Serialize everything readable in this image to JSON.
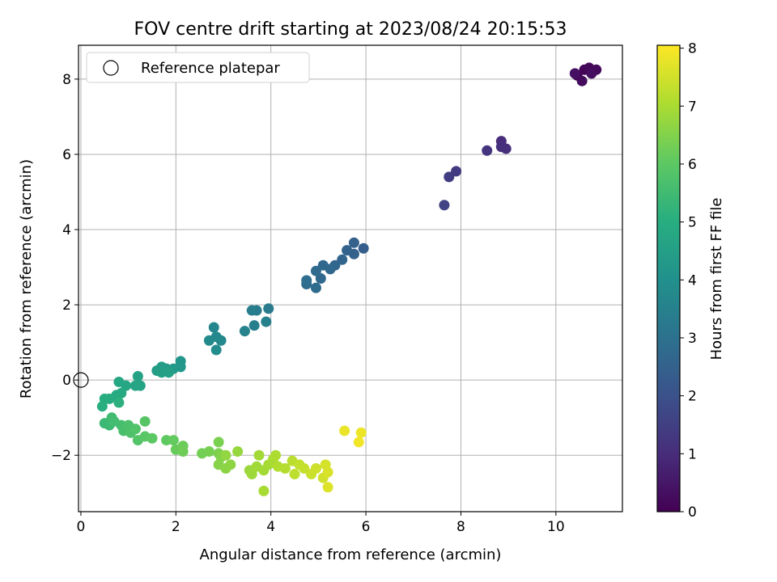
{
  "chart_data": {
    "type": "scatter",
    "title": "FOV centre drift starting at 2023/08/24 20:15:53",
    "xlabel": "Angular distance from reference (arcmin)",
    "ylabel": "Rotation from reference (arcmin)",
    "xlim": [
      -0.05,
      11.4
    ],
    "ylim": [
      -3.5,
      8.9
    ],
    "xticks": [
      0,
      2,
      4,
      6,
      8,
      10
    ],
    "yticks": [
      -2,
      0,
      2,
      4,
      6,
      8
    ],
    "xtick_labels": [
      "0",
      "2",
      "4",
      "6",
      "8",
      "10"
    ],
    "ytick_labels": [
      "−2",
      "0",
      "2",
      "4",
      "6",
      "8"
    ],
    "grid": true,
    "legend": {
      "position": "top-left",
      "entries": [
        "Reference platepar"
      ]
    },
    "reference_point": {
      "x": 0,
      "y": 0
    },
    "colorbar": {
      "label": "Hours from first FF file",
      "range": [
        0,
        8.05
      ],
      "ticks": [
        0,
        1,
        2,
        3,
        4,
        5,
        6,
        7,
        8
      ],
      "tick_labels": [
        "0",
        "1",
        "2",
        "3",
        "4",
        "5",
        "6",
        "7",
        "8"
      ],
      "colormap": "viridis"
    },
    "points": [
      {
        "x": 10.45,
        "y": 8.1,
        "h": 0.05
      },
      {
        "x": 10.6,
        "y": 8.25,
        "h": 0.1
      },
      {
        "x": 10.7,
        "y": 8.3,
        "h": 0.15
      },
      {
        "x": 10.85,
        "y": 8.25,
        "h": 0.2
      },
      {
        "x": 10.55,
        "y": 7.95,
        "h": 0.25
      },
      {
        "x": 10.75,
        "y": 8.15,
        "h": 0.3
      },
      {
        "x": 10.4,
        "y": 8.15,
        "h": 0.35
      },
      {
        "x": 8.85,
        "y": 6.35,
        "h": 1.0
      },
      {
        "x": 8.85,
        "y": 6.2,
        "h": 1.05
      },
      {
        "x": 8.95,
        "y": 6.15,
        "h": 1.1
      },
      {
        "x": 8.55,
        "y": 6.1,
        "h": 1.2
      },
      {
        "x": 7.9,
        "y": 5.55,
        "h": 1.4
      },
      {
        "x": 7.75,
        "y": 5.4,
        "h": 1.45
      },
      {
        "x": 7.65,
        "y": 4.65,
        "h": 1.6
      },
      {
        "x": 5.95,
        "y": 3.5,
        "h": 2.4
      },
      {
        "x": 5.75,
        "y": 3.35,
        "h": 2.45
      },
      {
        "x": 5.75,
        "y": 3.65,
        "h": 2.5
      },
      {
        "x": 5.6,
        "y": 3.45,
        "h": 2.55
      },
      {
        "x": 5.5,
        "y": 3.2,
        "h": 2.6
      },
      {
        "x": 5.35,
        "y": 3.05,
        "h": 2.65
      },
      {
        "x": 5.25,
        "y": 2.95,
        "h": 2.7
      },
      {
        "x": 5.1,
        "y": 3.05,
        "h": 2.72
      },
      {
        "x": 5.05,
        "y": 2.7,
        "h": 2.75
      },
      {
        "x": 4.95,
        "y": 2.9,
        "h": 2.78
      },
      {
        "x": 4.95,
        "y": 2.45,
        "h": 2.8
      },
      {
        "x": 4.75,
        "y": 2.55,
        "h": 2.85
      },
      {
        "x": 4.75,
        "y": 2.65,
        "h": 2.9
      },
      {
        "x": 3.95,
        "y": 1.9,
        "h": 3.3
      },
      {
        "x": 3.7,
        "y": 1.85,
        "h": 3.35
      },
      {
        "x": 3.6,
        "y": 1.85,
        "h": 3.4
      },
      {
        "x": 3.65,
        "y": 1.45,
        "h": 3.45
      },
      {
        "x": 3.9,
        "y": 1.55,
        "h": 3.5
      },
      {
        "x": 3.45,
        "y": 1.3,
        "h": 3.55
      },
      {
        "x": 2.8,
        "y": 1.4,
        "h": 3.7
      },
      {
        "x": 2.85,
        "y": 1.15,
        "h": 3.75
      },
      {
        "x": 2.95,
        "y": 1.05,
        "h": 3.78
      },
      {
        "x": 2.7,
        "y": 1.05,
        "h": 3.8
      },
      {
        "x": 2.85,
        "y": 0.8,
        "h": 3.85
      },
      {
        "x": 2.1,
        "y": 0.5,
        "h": 4.2
      },
      {
        "x": 2.1,
        "y": 0.35,
        "h": 4.25
      },
      {
        "x": 1.95,
        "y": 0.3,
        "h": 4.3
      },
      {
        "x": 1.8,
        "y": 0.3,
        "h": 4.35
      },
      {
        "x": 1.7,
        "y": 0.35,
        "h": 4.4
      },
      {
        "x": 1.6,
        "y": 0.25,
        "h": 4.45
      },
      {
        "x": 1.7,
        "y": 0.2,
        "h": 4.5
      },
      {
        "x": 1.85,
        "y": 0.2,
        "h": 4.55
      },
      {
        "x": 1.2,
        "y": 0.1,
        "h": 4.6
      },
      {
        "x": 1.25,
        "y": -0.15,
        "h": 4.65
      },
      {
        "x": 1.15,
        "y": -0.15,
        "h": 4.7
      },
      {
        "x": 0.95,
        "y": -0.15,
        "h": 4.75
      },
      {
        "x": 0.8,
        "y": -0.05,
        "h": 4.8
      },
      {
        "x": 0.85,
        "y": -0.35,
        "h": 4.85
      },
      {
        "x": 0.75,
        "y": -0.4,
        "h": 4.9
      },
      {
        "x": 0.6,
        "y": -0.5,
        "h": 4.95
      },
      {
        "x": 0.5,
        "y": -0.5,
        "h": 5.0
      },
      {
        "x": 0.45,
        "y": -0.7,
        "h": 5.05
      },
      {
        "x": 0.8,
        "y": -0.6,
        "h": 5.1
      },
      {
        "x": 0.5,
        "y": -1.15,
        "h": 5.4
      },
      {
        "x": 0.6,
        "y": -1.2,
        "h": 5.45
      },
      {
        "x": 0.65,
        "y": -1.0,
        "h": 5.5
      },
      {
        "x": 0.7,
        "y": -1.1,
        "h": 5.55
      },
      {
        "x": 0.85,
        "y": -1.2,
        "h": 5.6
      },
      {
        "x": 0.9,
        "y": -1.35,
        "h": 5.65
      },
      {
        "x": 1.0,
        "y": -1.2,
        "h": 5.7
      },
      {
        "x": 1.05,
        "y": -1.4,
        "h": 5.75
      },
      {
        "x": 1.15,
        "y": -1.3,
        "h": 5.8
      },
      {
        "x": 1.2,
        "y": -1.6,
        "h": 5.85
      },
      {
        "x": 1.35,
        "y": -1.1,
        "h": 5.9
      },
      {
        "x": 1.35,
        "y": -1.5,
        "h": 5.95
      },
      {
        "x": 1.5,
        "y": -1.55,
        "h": 6.0
      },
      {
        "x": 1.8,
        "y": -1.6,
        "h": 6.05
      },
      {
        "x": 1.95,
        "y": -1.6,
        "h": 6.1
      },
      {
        "x": 2.0,
        "y": -1.85,
        "h": 6.15
      },
      {
        "x": 2.15,
        "y": -1.75,
        "h": 6.2
      },
      {
        "x": 2.15,
        "y": -1.9,
        "h": 6.25
      },
      {
        "x": 2.55,
        "y": -1.95,
        "h": 6.3
      },
      {
        "x": 2.7,
        "y": -1.9,
        "h": 6.35
      },
      {
        "x": 2.9,
        "y": -1.65,
        "h": 6.4
      },
      {
        "x": 2.9,
        "y": -1.95,
        "h": 6.45
      },
      {
        "x": 2.95,
        "y": -2.05,
        "h": 6.5
      },
      {
        "x": 2.9,
        "y": -2.25,
        "h": 6.55
      },
      {
        "x": 3.05,
        "y": -2.35,
        "h": 6.6
      },
      {
        "x": 3.15,
        "y": -2.25,
        "h": 6.65
      },
      {
        "x": 3.05,
        "y": -2.0,
        "h": 6.7
      },
      {
        "x": 3.3,
        "y": -1.9,
        "h": 6.75
      },
      {
        "x": 3.55,
        "y": -2.4,
        "h": 6.8
      },
      {
        "x": 3.6,
        "y": -2.5,
        "h": 6.85
      },
      {
        "x": 3.7,
        "y": -2.3,
        "h": 6.88
      },
      {
        "x": 3.75,
        "y": -2.0,
        "h": 6.9
      },
      {
        "x": 3.85,
        "y": -2.4,
        "h": 6.93
      },
      {
        "x": 3.95,
        "y": -2.25,
        "h": 6.95
      },
      {
        "x": 3.85,
        "y": -2.95,
        "h": 6.98
      },
      {
        "x": 4.05,
        "y": -2.1,
        "h": 7.0
      },
      {
        "x": 4.1,
        "y": -2.0,
        "h": 7.05
      },
      {
        "x": 4.15,
        "y": -2.3,
        "h": 7.1
      },
      {
        "x": 4.3,
        "y": -2.35,
        "h": 7.15
      },
      {
        "x": 4.45,
        "y": -2.15,
        "h": 7.2
      },
      {
        "x": 4.5,
        "y": -2.5,
        "h": 7.25
      },
      {
        "x": 4.6,
        "y": -2.25,
        "h": 7.3
      },
      {
        "x": 4.7,
        "y": -2.35,
        "h": 7.35
      },
      {
        "x": 4.85,
        "y": -2.5,
        "h": 7.4
      },
      {
        "x": 4.95,
        "y": -2.35,
        "h": 7.45
      },
      {
        "x": 5.1,
        "y": -2.6,
        "h": 7.5
      },
      {
        "x": 5.15,
        "y": -2.25,
        "h": 7.55
      },
      {
        "x": 5.2,
        "y": -2.45,
        "h": 7.6
      },
      {
        "x": 5.2,
        "y": -2.85,
        "h": 7.65
      },
      {
        "x": 5.55,
        "y": -1.35,
        "h": 7.8
      },
      {
        "x": 5.9,
        "y": -1.4,
        "h": 7.85
      },
      {
        "x": 5.85,
        "y": -1.65,
        "h": 7.9
      }
    ]
  }
}
